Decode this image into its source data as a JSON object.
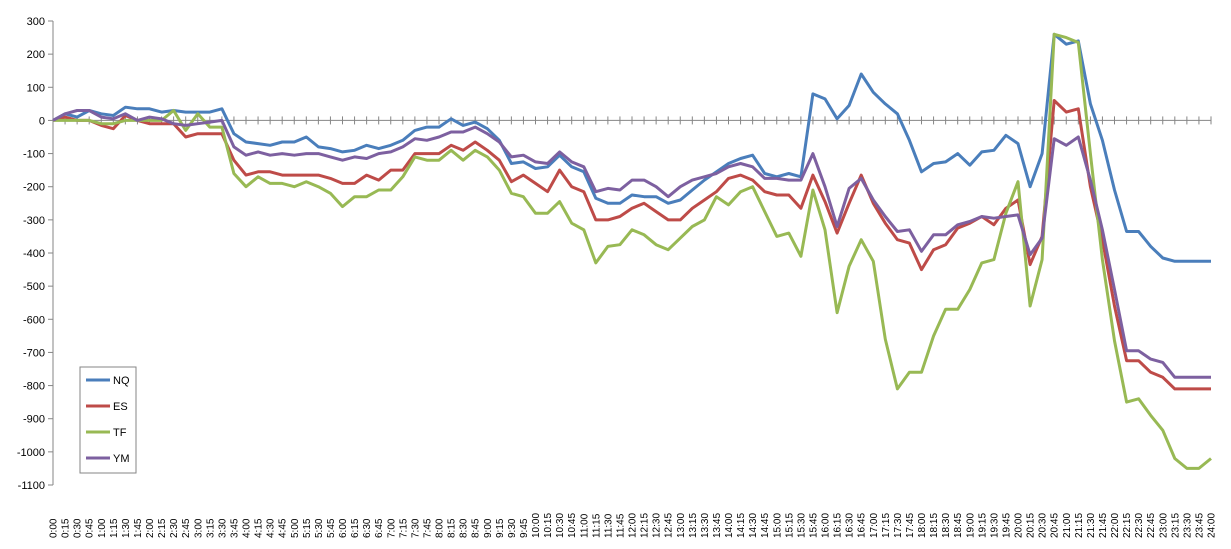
{
  "chart_data": {
    "type": "line",
    "categories": [
      "0:00",
      "0:15",
      "0:30",
      "0:45",
      "1:00",
      "1:15",
      "1:30",
      "1:45",
      "2:00",
      "2:15",
      "2:30",
      "2:45",
      "3:00",
      "3:15",
      "3:30",
      "3:45",
      "4:00",
      "4:15",
      "4:30",
      "4:45",
      "5:00",
      "5:15",
      "5:30",
      "5:45",
      "6:00",
      "6:15",
      "6:30",
      "6:45",
      "7:00",
      "7:15",
      "7:30",
      "7:45",
      "8:00",
      "8:15",
      "8:30",
      "8:45",
      "9:00",
      "9:15",
      "9:30",
      "9:45",
      "10:00",
      "10:15",
      "10:30",
      "10:45",
      "11:00",
      "11:15",
      "11:30",
      "11:45",
      "12:00",
      "12:15",
      "12:30",
      "12:45",
      "13:00",
      "13:15",
      "13:30",
      "13:45",
      "14:00",
      "14:15",
      "14:30",
      "14:45",
      "15:00",
      "15:15",
      "15:30",
      "15:45",
      "16:00",
      "16:15",
      "16:30",
      "16:45",
      "17:00",
      "17:15",
      "17:30",
      "17:45",
      "18:00",
      "18:15",
      "18:30",
      "18:45",
      "19:00",
      "19:15",
      "19:30",
      "19:45",
      "20:00",
      "20:15",
      "20:30",
      "20:45",
      "21:00",
      "21:15",
      "21:30",
      "21:45",
      "22:00",
      "22:15",
      "22:30",
      "22:45",
      "23:00",
      "23:15",
      "23:30",
      "23:45",
      "24:00"
    ],
    "series": [
      {
        "name": "NQ",
        "color": "#4a7ebb",
        "values": [
          0,
          20,
          10,
          30,
          20,
          15,
          40,
          35,
          35,
          25,
          30,
          25,
          25,
          25,
          35,
          -40,
          -65,
          -70,
          -75,
          -65,
          -65,
          -50,
          -80,
          -85,
          -95,
          -90,
          -75,
          -85,
          -75,
          -60,
          -30,
          -20,
          -20,
          5,
          -15,
          -5,
          -25,
          -60,
          -130,
          -125,
          -145,
          -140,
          -105,
          -140,
          -155,
          -235,
          -250,
          -250,
          -225,
          -230,
          -230,
          -250,
          -240,
          -210,
          -180,
          -155,
          -130,
          -115,
          -105,
          -160,
          -170,
          -160,
          -170,
          80,
          65,
          5,
          45,
          140,
          85,
          50,
          20,
          -60,
          -155,
          -130,
          -125,
          -100,
          -135,
          -95,
          -90,
          -45,
          -70,
          -200,
          -100,
          260,
          230,
          240,
          50,
          -60,
          -210,
          -335,
          -335,
          -380,
          -415,
          -425,
          -425,
          -425,
          -425
        ]
      },
      {
        "name": "ES",
        "color": "#be4b48",
        "values": [
          0,
          10,
          0,
          0,
          -15,
          -25,
          15,
          0,
          -10,
          -10,
          -10,
          -50,
          -40,
          -40,
          -40,
          -120,
          -165,
          -155,
          -155,
          -165,
          -165,
          -165,
          -165,
          -175,
          -190,
          -190,
          -165,
          -180,
          -150,
          -150,
          -100,
          -100,
          -100,
          -75,
          -90,
          -65,
          -90,
          -120,
          -185,
          -165,
          -190,
          -215,
          -150,
          -200,
          -215,
          -300,
          -300,
          -290,
          -265,
          -250,
          -275,
          -300,
          -300,
          -265,
          -240,
          -215,
          -175,
          -165,
          -180,
          -215,
          -225,
          -225,
          -265,
          -165,
          -245,
          -340,
          -250,
          -165,
          -250,
          -310,
          -360,
          -370,
          -450,
          -390,
          -375,
          -325,
          -310,
          -290,
          -315,
          -265,
          -240,
          -435,
          -350,
          60,
          25,
          35,
          -200,
          -360,
          -560,
          -725,
          -725,
          -760,
          -775,
          -810,
          -810,
          -810,
          -810
        ]
      },
      {
        "name": "TF",
        "color": "#98b954",
        "values": [
          0,
          0,
          0,
          0,
          -10,
          -10,
          0,
          0,
          0,
          0,
          30,
          -30,
          20,
          -20,
          -20,
          -160,
          -200,
          -170,
          -190,
          -190,
          -200,
          -185,
          -200,
          -220,
          -260,
          -230,
          -230,
          -210,
          -210,
          -170,
          -110,
          -120,
          -120,
          -90,
          -120,
          -90,
          -110,
          -150,
          -220,
          -230,
          -280,
          -280,
          -245,
          -310,
          -330,
          -430,
          -380,
          -375,
          -330,
          -345,
          -375,
          -390,
          -355,
          -320,
          -300,
          -230,
          -255,
          -215,
          -200,
          -275,
          -350,
          -340,
          -410,
          -210,
          -330,
          -580,
          -440,
          -360,
          -425,
          -660,
          -810,
          -760,
          -760,
          -650,
          -570,
          -570,
          -510,
          -430,
          -420,
          -280,
          -185,
          -560,
          -420,
          260,
          250,
          235,
          -100,
          -420,
          -665,
          -850,
          -840,
          -890,
          -935,
          -1020,
          -1050,
          -1050,
          -1020
        ]
      },
      {
        "name": "YM",
        "color": "#7d60a0",
        "values": [
          0,
          20,
          30,
          30,
          10,
          5,
          20,
          0,
          10,
          5,
          -10,
          -15,
          -10,
          -5,
          0,
          -80,
          -105,
          -95,
          -105,
          -100,
          -105,
          -100,
          -100,
          -110,
          -120,
          -110,
          -115,
          -100,
          -95,
          -80,
          -55,
          -60,
          -50,
          -35,
          -35,
          -20,
          -40,
          -65,
          -110,
          -105,
          -125,
          -130,
          -95,
          -125,
          -140,
          -215,
          -205,
          -210,
          -180,
          -180,
          -200,
          -230,
          -200,
          -180,
          -170,
          -160,
          -140,
          -130,
          -140,
          -175,
          -175,
          -180,
          -180,
          -100,
          -200,
          -320,
          -205,
          -175,
          -240,
          -290,
          -335,
          -330,
          -395,
          -345,
          -345,
          -315,
          -305,
          -290,
          -295,
          -290,
          -285,
          -405,
          -355,
          -55,
          -75,
          -50,
          -180,
          -330,
          -510,
          -695,
          -695,
          -720,
          -730,
          -775,
          -775,
          -775,
          -775
        ]
      }
    ],
    "ylim": [
      -1100,
      300
    ],
    "yticks": [
      -1100,
      -1000,
      -900,
      -800,
      -700,
      -600,
      -500,
      -400,
      -300,
      -200,
      -100,
      0,
      100,
      200,
      300
    ],
    "grid": false,
    "legend": "lower-left"
  }
}
